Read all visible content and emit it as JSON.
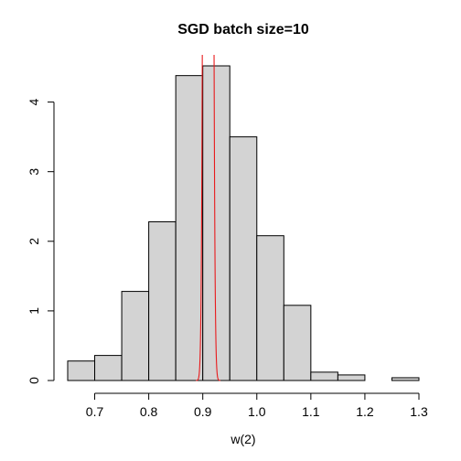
{
  "chart_data": {
    "type": "histogram",
    "title": "SGD batch size=10",
    "xlabel": "w(2)",
    "ylabel": "",
    "xlim": [
      0.65,
      1.3
    ],
    "ylim": [
      0,
      4.52
    ],
    "x_ticks": [
      0.7,
      0.8,
      0.9,
      1.0,
      1.1,
      1.2,
      1.3
    ],
    "x_tick_labels": [
      "0.7",
      "0.8",
      "0.9",
      "1.0",
      "1.1",
      "1.2",
      "1.3"
    ],
    "y_ticks": [
      0,
      1,
      2,
      3,
      4
    ],
    "y_tick_labels": [
      "0",
      "1",
      "2",
      "3",
      "4"
    ],
    "bin_edges": [
      0.65,
      0.7,
      0.75,
      0.8,
      0.85,
      0.9,
      0.95,
      1.0,
      1.05,
      1.1,
      1.15,
      1.2,
      1.25,
      1.3
    ],
    "values": [
      0.28,
      0.36,
      1.28,
      2.28,
      4.38,
      4.52,
      3.5,
      2.08,
      1.08,
      0.12,
      0.08,
      0.0,
      0.04
    ],
    "bar_color": "#d3d3d3",
    "overlay": {
      "type": "line",
      "color": "#e8191b",
      "shape": "narrow normal density",
      "mean": 0.91,
      "sd": 0.0045
    },
    "grid": false,
    "legend": "none"
  }
}
